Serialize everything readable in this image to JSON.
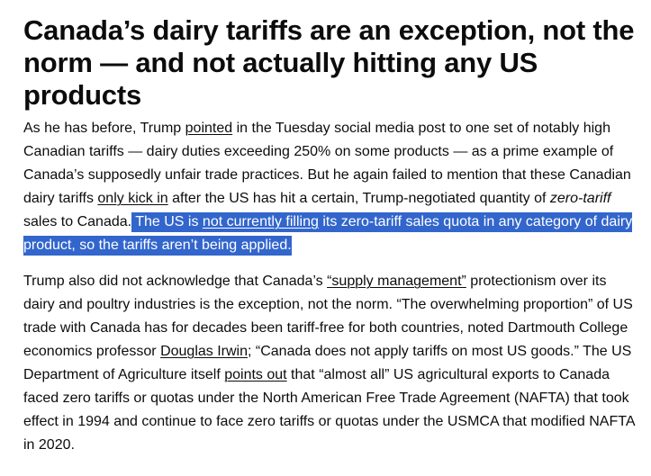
{
  "article": {
    "headline": "Canada’s dairy tariffs are an exception, not the norm — and not actually hitting any US products",
    "paragraph1": {
      "t1": "As he has before, Trump ",
      "link_pointed": "pointed",
      "t2": " in the Tuesday social media post to one set of notably high Canadian tariffs — dairy duties exceeding 250% on some products — as a prime example of Canada’s supposedly unfair trade practices. But he again failed to mention that these Canadian dairy tariffs ",
      "link_only_kick_in": "only kick in",
      "t3": " after the US has hit a certain, Trump-negotiated quantity of ",
      "em_zero_tariff": "zero-tariff",
      "t4": " sales to Canada.",
      "hl1": " The US is ",
      "link_not_filling": "not currently filling",
      "hl2": " its zero-tariff sales quota in any category of dairy product, so the tariffs aren’t being applied."
    },
    "paragraph2": {
      "t1": "Trump also did not acknowledge that Canada’s ",
      "link_supply_management": "“supply management”",
      "t2": " protectionism over its dairy and poultry industries is the exception, not the norm. “The overwhelming proportion” of US trade with Canada has for decades been tariff-free for both countries, noted Dartmouth College economics professor ",
      "link_douglas_irwin": "Douglas Irwin",
      "t3": "; “Canada does not apply tariffs on most US goods.” The US Department of Agriculture itself ",
      "link_points_out": "points out",
      "t4": " that “almost all” US agricultural exports to Canada faced zero tariffs or quotas under the North American Free Trade Agreement (NAFTA) that took effect in 1994 and continue to face zero tariffs or quotas under the USMCA that modified NAFTA in 2020."
    }
  },
  "colors": {
    "text": "#0c0c0c",
    "highlight_bg": "#3366cc",
    "highlight_text": "#ffffff"
  }
}
